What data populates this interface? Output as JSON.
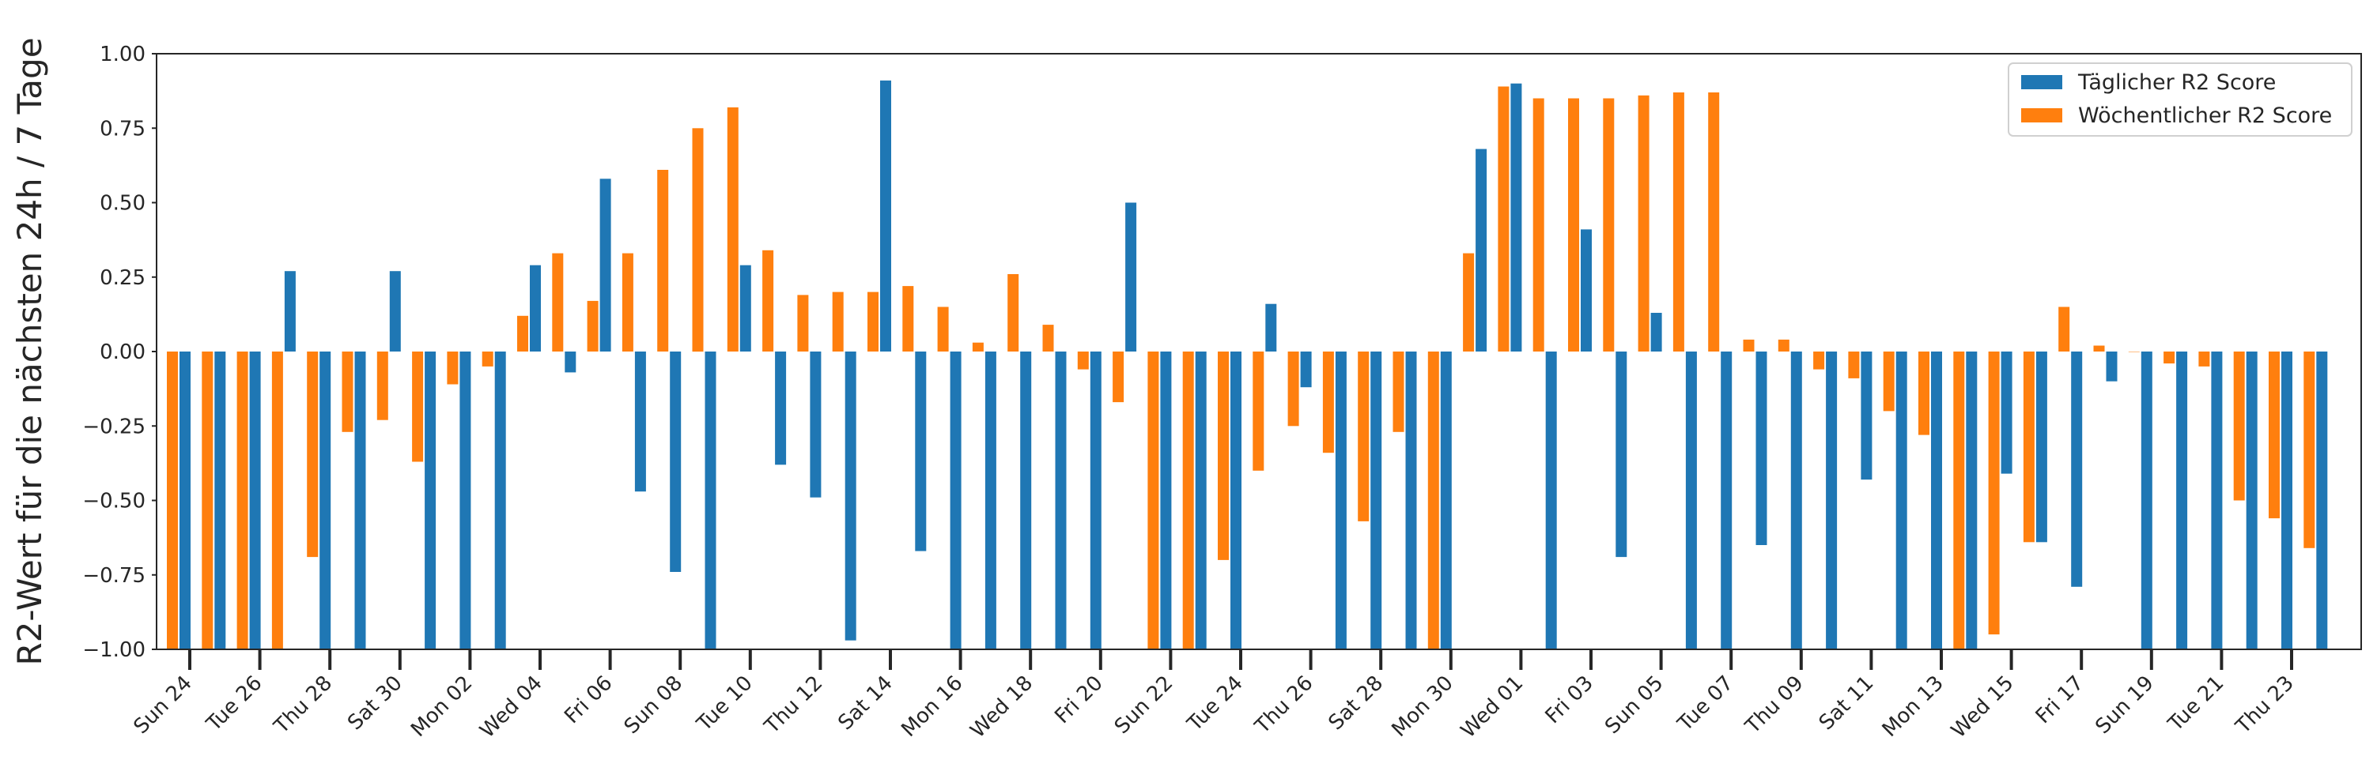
{
  "chart_data": {
    "type": "bar",
    "title": "",
    "xlabel": "",
    "ylabel": "R2-Wert für die nächsten 24h / 7 Tage",
    "ylim": [
      -1.0,
      1.0
    ],
    "yticks": [
      1.0,
      0.75,
      0.5,
      0.25,
      0.0,
      -0.25,
      -0.5,
      -0.75,
      -1.0
    ],
    "ytick_labels": [
      "1.00",
      "0.75",
      "0.50",
      "0.25",
      "0.00",
      "−0.25",
      "−0.50",
      "−0.75",
      "−1.00"
    ],
    "xtick_labels": [
      "Sun 24",
      "Tue 26",
      "Thu 28",
      "Sat 30",
      "Mon 02",
      "Wed 04",
      "Fri 06",
      "Sun 08",
      "Tue 10",
      "Thu 12",
      "Sat 14",
      "Mon 16",
      "Wed 18",
      "Fri 20",
      "Sun 22",
      "Tue 24",
      "Thu 26",
      "Sat 28",
      "Mon 30",
      "Wed 01",
      "Fri 03",
      "Sun 05",
      "Tue 07",
      "Thu 09",
      "Sat 11",
      "Mon 13",
      "Wed 15",
      "Fri 17",
      "Sun 19",
      "Tue 21",
      "Thu 23"
    ],
    "grid": false,
    "legend_position": "top-right",
    "series": [
      {
        "name": "Täglicher R2 Score",
        "color": "#1f77b4",
        "values": [
          -1.0,
          -1.0,
          -1.0,
          0.27,
          -1.0,
          -1.0,
          0.27,
          -1.0,
          -1.0,
          -1.0,
          0.29,
          -0.07,
          0.58,
          -0.47,
          -0.74,
          -1.0,
          0.29,
          -0.38,
          -0.49,
          -0.97,
          0.91,
          -0.67,
          -1.0,
          -1.0,
          -1.0,
          -1.0,
          -1.0,
          0.5,
          -1.0,
          -1.0,
          -1.0,
          0.16,
          -0.12,
          -1.0,
          -1.0,
          -1.0,
          -1.0,
          0.68,
          0.9,
          -1.0,
          0.41,
          -0.69,
          0.13,
          -1.0,
          -1.0,
          -0.65,
          -1.0,
          -1.0,
          -0.43,
          -1.0,
          -1.0,
          -1.0,
          -0.41,
          -0.64,
          -0.79,
          -0.1,
          -1.0,
          -1.0,
          -1.0,
          -1.0,
          -1.0,
          -1.0
        ]
      },
      {
        "name": "Wöchentlicher R2 Score",
        "color": "#ff7f0e",
        "values": [
          -1.0,
          -1.0,
          -1.0,
          -1.0,
          -0.69,
          -0.27,
          -0.23,
          -0.37,
          -0.11,
          -0.05,
          0.12,
          0.33,
          0.17,
          0.33,
          0.61,
          0.75,
          0.82,
          0.34,
          0.19,
          0.2,
          0.2,
          0.22,
          0.15,
          0.03,
          0.26,
          0.09,
          -0.06,
          -0.17,
          -1.0,
          -1.0,
          -0.7,
          -0.4,
          -0.25,
          -0.34,
          -0.57,
          -0.27,
          -1.0,
          0.33,
          0.89,
          0.85,
          0.85,
          0.85,
          0.86,
          0.87,
          0.87,
          0.04,
          0.04,
          -0.06,
          -0.09,
          -0.2,
          -0.28,
          -1.0,
          -0.95,
          -0.64,
          0.15,
          0.02,
          0.0,
          -0.04,
          -0.05,
          -0.5,
          -0.56,
          -0.66
        ]
      }
    ]
  }
}
